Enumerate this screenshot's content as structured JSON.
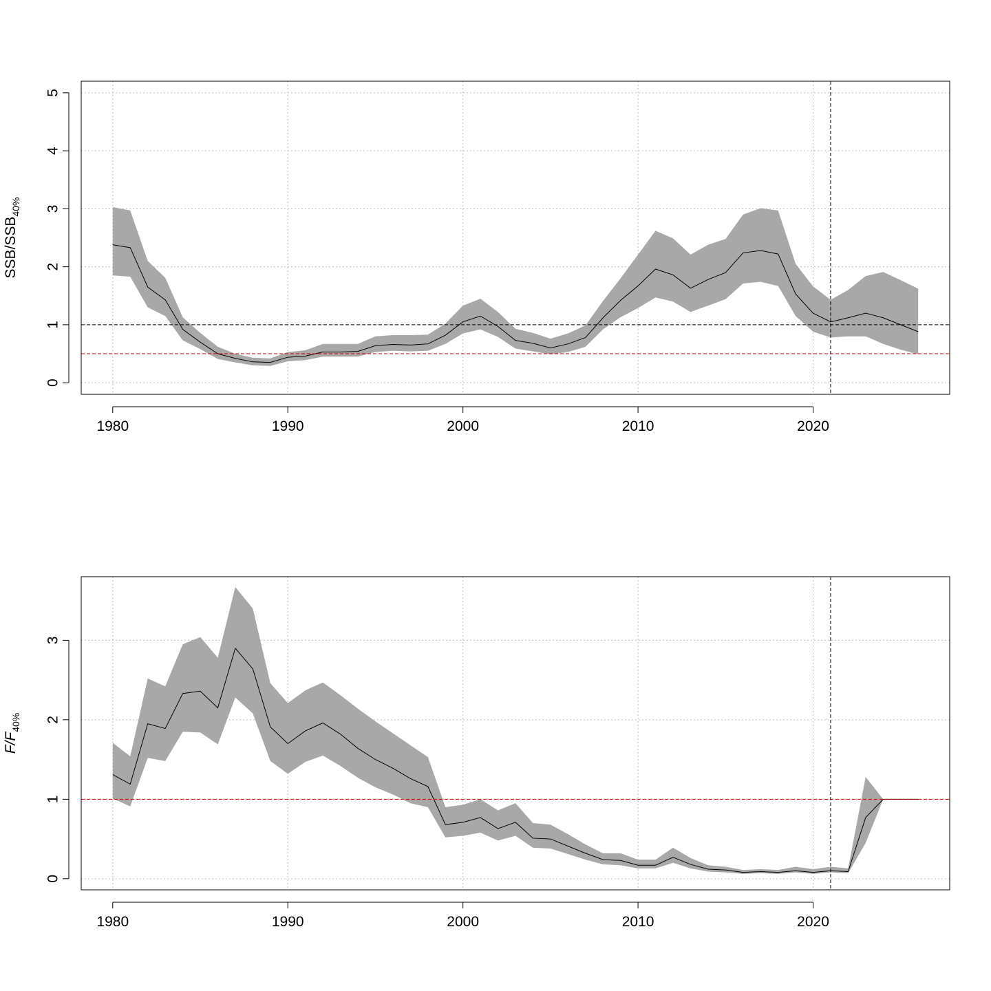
{
  "chart_data": [
    {
      "type": "line",
      "ylabel_main": "SSB/SSB",
      "ylabel_sub": "40%",
      "xlim": [
        1978.2,
        2027.8
      ],
      "ylim": [
        -0.2,
        5.2
      ],
      "xticks": [
        1980,
        1990,
        2000,
        2010,
        2020
      ],
      "yticks": [
        0,
        1,
        2,
        3,
        4,
        5
      ],
      "grid": true,
      "band_color": "#a8a8a8",
      "line_color": "#000000",
      "hlines": [
        {
          "y": 1.0,
          "color": "#000000"
        },
        {
          "y": 0.5,
          "color": "#cc0000"
        }
      ],
      "vline_x": 2021,
      "x": [
        1980,
        1981,
        1982,
        1983,
        1984,
        1985,
        1986,
        1987,
        1988,
        1989,
        1990,
        1991,
        1992,
        1993,
        1994,
        1995,
        1996,
        1997,
        1998,
        1999,
        2000,
        2001,
        2002,
        2003,
        2004,
        2005,
        2006,
        2007,
        2008,
        2009,
        2010,
        2011,
        2012,
        2013,
        2014,
        2015,
        2016,
        2017,
        2018,
        2019,
        2020,
        2021,
        2022,
        2023,
        2024,
        2025,
        2026
      ],
      "median": [
        2.38,
        2.33,
        1.65,
        1.43,
        0.92,
        0.7,
        0.5,
        0.42,
        0.36,
        0.35,
        0.44,
        0.46,
        0.53,
        0.53,
        0.54,
        0.64,
        0.66,
        0.65,
        0.67,
        0.82,
        1.05,
        1.15,
        0.97,
        0.73,
        0.68,
        0.6,
        0.67,
        0.78,
        1.12,
        1.42,
        1.67,
        1.96,
        1.86,
        1.63,
        1.78,
        1.9,
        2.24,
        2.28,
        2.22,
        1.53,
        1.2,
        1.05,
        1.12,
        1.2,
        1.12,
        1.0,
        0.88
      ],
      "lower": [
        1.85,
        1.83,
        1.3,
        1.15,
        0.73,
        0.58,
        0.41,
        0.35,
        0.3,
        0.29,
        0.37,
        0.39,
        0.45,
        0.45,
        0.45,
        0.53,
        0.55,
        0.54,
        0.55,
        0.67,
        0.85,
        0.92,
        0.79,
        0.59,
        0.54,
        0.49,
        0.53,
        0.62,
        0.92,
        1.13,
        1.29,
        1.47,
        1.4,
        1.22,
        1.33,
        1.44,
        1.71,
        1.74,
        1.67,
        1.15,
        0.88,
        0.78,
        0.8,
        0.8,
        0.67,
        0.57,
        0.49
      ],
      "upper": [
        3.03,
        2.97,
        2.1,
        1.81,
        1.13,
        0.86,
        0.62,
        0.5,
        0.43,
        0.42,
        0.53,
        0.56,
        0.67,
        0.67,
        0.67,
        0.8,
        0.82,
        0.82,
        0.83,
        1.02,
        1.33,
        1.45,
        1.22,
        0.93,
        0.86,
        0.76,
        0.85,
        0.99,
        1.41,
        1.8,
        2.21,
        2.62,
        2.49,
        2.21,
        2.38,
        2.48,
        2.9,
        3.01,
        2.97,
        2.05,
        1.66,
        1.43,
        1.6,
        1.84,
        1.91,
        1.77,
        1.62
      ]
    },
    {
      "type": "line",
      "ylabel_main": "F/F",
      "ylabel_sub": "40%",
      "xlim": [
        1978.2,
        2027.8
      ],
      "ylim": [
        -0.14,
        3.8
      ],
      "xticks": [
        1980,
        1990,
        2000,
        2010,
        2020
      ],
      "yticks": [
        0,
        1,
        2,
        3
      ],
      "grid": true,
      "band_color": "#a8a8a8",
      "line_color": "#000000",
      "hlines": [
        {
          "y": 1.0,
          "color": "#cc0000"
        }
      ],
      "vline_x": 2021,
      "x": [
        1980,
        1981,
        1982,
        1983,
        1984,
        1985,
        1986,
        1987,
        1988,
        1989,
        1990,
        1991,
        1992,
        1993,
        1994,
        1995,
        1996,
        1997,
        1998,
        1999,
        2000,
        2001,
        2002,
        2003,
        2004,
        2005,
        2006,
        2007,
        2008,
        2009,
        2010,
        2011,
        2012,
        2013,
        2014,
        2015,
        2016,
        2017,
        2018,
        2019,
        2020,
        2021,
        2022,
        2023,
        2024,
        2025,
        2026
      ],
      "median": [
        1.31,
        1.19,
        1.95,
        1.89,
        2.33,
        2.36,
        2.15,
        2.9,
        2.64,
        1.91,
        1.7,
        1.86,
        1.96,
        1.82,
        1.64,
        1.5,
        1.39,
        1.26,
        1.16,
        0.68,
        0.71,
        0.77,
        0.63,
        0.71,
        0.51,
        0.5,
        0.41,
        0.32,
        0.24,
        0.23,
        0.17,
        0.17,
        0.27,
        0.18,
        0.12,
        0.11,
        0.08,
        0.09,
        0.08,
        0.1,
        0.08,
        0.1,
        0.09,
        0.77,
        1.0,
        1.0,
        1.0
      ],
      "lower": [
        1.01,
        0.91,
        1.52,
        1.48,
        1.85,
        1.84,
        1.69,
        2.28,
        2.08,
        1.48,
        1.32,
        1.47,
        1.55,
        1.42,
        1.27,
        1.15,
        1.06,
        0.95,
        0.9,
        0.52,
        0.54,
        0.58,
        0.48,
        0.54,
        0.39,
        0.38,
        0.31,
        0.24,
        0.18,
        0.17,
        0.13,
        0.13,
        0.2,
        0.13,
        0.09,
        0.08,
        0.06,
        0.07,
        0.06,
        0.08,
        0.06,
        0.08,
        0.07,
        0.45,
        1.0,
        1.0,
        1.0
      ],
      "upper": [
        1.71,
        1.54,
        2.52,
        2.42,
        2.95,
        3.04,
        2.78,
        3.67,
        3.4,
        2.46,
        2.21,
        2.37,
        2.47,
        2.31,
        2.14,
        1.98,
        1.83,
        1.68,
        1.53,
        0.9,
        0.93,
        1.0,
        0.86,
        0.95,
        0.7,
        0.68,
        0.56,
        0.43,
        0.32,
        0.32,
        0.24,
        0.24,
        0.39,
        0.26,
        0.17,
        0.15,
        0.11,
        0.12,
        0.11,
        0.15,
        0.12,
        0.15,
        0.13,
        1.28,
        1.0,
        1.0,
        1.0
      ]
    }
  ]
}
